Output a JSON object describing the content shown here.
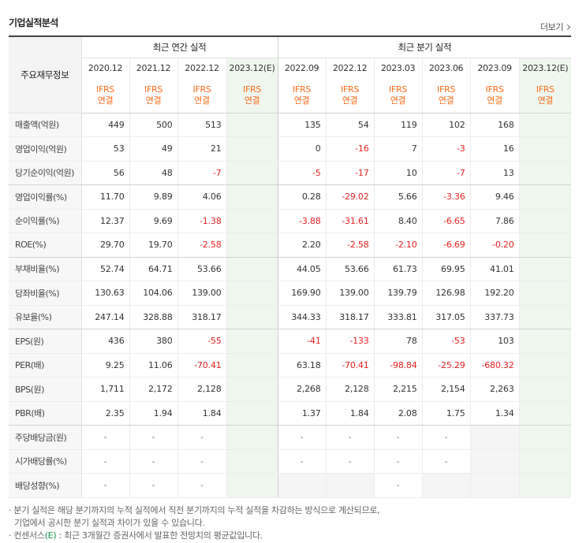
{
  "header": {
    "title": "기업실적분석",
    "more": "더보기"
  },
  "groups": {
    "label": "주요재무정보",
    "annual": "최근 연간 실적",
    "quarter": "최근 분기 실적"
  },
  "columns": [
    {
      "date": "2020.12",
      "ifrs1": "IFRS",
      "ifrs2": "연결",
      "est": false
    },
    {
      "date": "2021.12",
      "ifrs1": "IFRS",
      "ifrs2": "연결",
      "est": false
    },
    {
      "date": "2022.12",
      "ifrs1": "IFRS",
      "ifrs2": "연결",
      "est": false
    },
    {
      "date": "2023.12(E)",
      "ifrs1": "IFRS",
      "ifrs2": "연결",
      "est": true
    },
    {
      "date": "2022.09",
      "ifrs1": "IFRS",
      "ifrs2": "연결",
      "est": false
    },
    {
      "date": "2022.12",
      "ifrs1": "IFRS",
      "ifrs2": "연결",
      "est": false
    },
    {
      "date": "2023.03",
      "ifrs1": "IFRS",
      "ifrs2": "연결",
      "est": false
    },
    {
      "date": "2023.06",
      "ifrs1": "IFRS",
      "ifrs2": "연결",
      "est": false
    },
    {
      "date": "2023.09",
      "ifrs1": "IFRS",
      "ifrs2": "연결",
      "est": false
    },
    {
      "date": "2023.12(E)",
      "ifrs1": "IFRS",
      "ifrs2": "연결",
      "est": true
    }
  ],
  "rows": [
    {
      "label": "매출액(억원)",
      "values": [
        "449",
        "500",
        "513",
        "",
        "135",
        "54",
        "119",
        "102",
        "168",
        ""
      ]
    },
    {
      "label": "영업이익(억원)",
      "values": [
        "53",
        "49",
        "21",
        "",
        "0",
        "-16",
        "7",
        "-3",
        "16",
        ""
      ]
    },
    {
      "label": "당기순이익(억원)",
      "values": [
        "56",
        "48",
        "-7",
        "",
        "-5",
        "-17",
        "10",
        "-7",
        "13",
        ""
      ],
      "sep": true
    },
    {
      "label": "영업이익률(%)",
      "values": [
        "11.70",
        "9.89",
        "4.06",
        "",
        "0.28",
        "-29.02",
        "5.66",
        "-3.36",
        "9.46",
        ""
      ]
    },
    {
      "label": "순이익률(%)",
      "values": [
        "12.37",
        "9.69",
        "-1.38",
        "",
        "-3.88",
        "-31.61",
        "8.40",
        "-6.65",
        "7.86",
        ""
      ]
    },
    {
      "label": "ROE(%)",
      "values": [
        "29.70",
        "19.70",
        "-2.58",
        "",
        "2.20",
        "-2.58",
        "-2.10",
        "-6.69",
        "-0.20",
        ""
      ],
      "sep": true
    },
    {
      "label": "부채비율(%)",
      "values": [
        "52.74",
        "64.71",
        "53.66",
        "",
        "44.05",
        "53.66",
        "61.73",
        "69.95",
        "41.01",
        ""
      ]
    },
    {
      "label": "당좌비율(%)",
      "values": [
        "130.63",
        "104.06",
        "139.00",
        "",
        "169.90",
        "139.00",
        "139.79",
        "126.98",
        "192.20",
        ""
      ]
    },
    {
      "label": "유보율(%)",
      "values": [
        "247.14",
        "328.88",
        "318.17",
        "",
        "344.33",
        "318.17",
        "333.81",
        "317.05",
        "337.73",
        ""
      ],
      "sep": true
    },
    {
      "label": "EPS(원)",
      "values": [
        "436",
        "380",
        "-55",
        "",
        "-41",
        "-133",
        "78",
        "-53",
        "103",
        ""
      ]
    },
    {
      "label": "PER(배)",
      "values": [
        "9.25",
        "11.06",
        "-70.41",
        "",
        "63.18",
        "-70.41",
        "-98.84",
        "-25.29",
        "-680.32",
        ""
      ]
    },
    {
      "label": "BPS(원)",
      "values": [
        "1,711",
        "2,172",
        "2,128",
        "",
        "2,268",
        "2,128",
        "2,215",
        "2,154",
        "2,263",
        ""
      ]
    },
    {
      "label": "PBR(배)",
      "values": [
        "2.35",
        "1.94",
        "1.84",
        "",
        "1.37",
        "1.84",
        "2.08",
        "1.75",
        "1.34",
        ""
      ],
      "sep": true
    },
    {
      "label": "주당배당금(원)",
      "values": [
        "-",
        "-",
        "-",
        "",
        "-",
        "-",
        "-",
        "-",
        "",
        ""
      ]
    },
    {
      "label": "시가배당률(%)",
      "values": [
        "-",
        "-",
        "-",
        "",
        "-",
        "-",
        "-",
        "-",
        "",
        ""
      ]
    },
    {
      "label": "배당성향(%)",
      "values": [
        "-",
        "-",
        "-",
        "",
        "",
        "",
        "-",
        "",
        "",
        ""
      ]
    }
  ],
  "notes": {
    "line1": "· 분기 실적은 해당 분기까지의 누적 실적에서 직전 분기까지의 누적 실적을 차감하는 방식으로 계산되므로,",
    "line2": "기업에서 공시한 분기 실적과 차이가 있을 수 있습니다.",
    "line3_pre": "· 컨센서스",
    "line3_e": "(E)",
    "line3_post": " : 최근 3개월간 증권사에서 발표한 전망치의 평균값입니다."
  }
}
